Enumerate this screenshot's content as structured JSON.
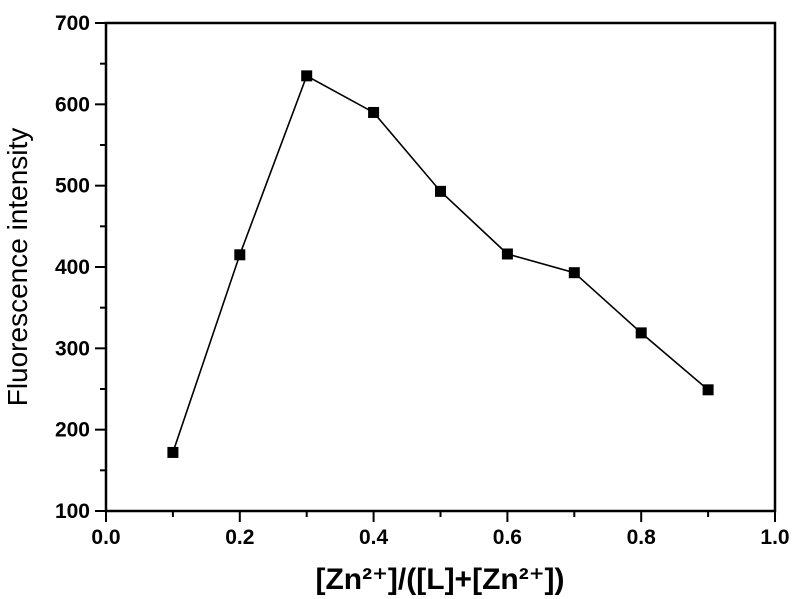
{
  "chart_data": {
    "type": "line",
    "title": "",
    "xlabel": "[Zn²⁺]/([L]+[Zn²⁺])",
    "ylabel": "Fluorescence intensity",
    "x": [
      0.1,
      0.2,
      0.3,
      0.4,
      0.5,
      0.6,
      0.7,
      0.8,
      0.9
    ],
    "y": [
      172,
      415,
      635,
      590,
      493,
      416,
      393,
      319,
      249
    ],
    "xlim": [
      0.0,
      1.0
    ],
    "ylim": [
      100,
      700
    ],
    "x_ticks": [
      0.0,
      0.2,
      0.4,
      0.6,
      0.8,
      1.0
    ],
    "x_tick_labels": [
      "0.0",
      "0.2",
      "0.4",
      "0.6",
      "0.8",
      "1.0"
    ],
    "x_minor_ticks": [
      0.1,
      0.3,
      0.5,
      0.7,
      0.9
    ],
    "y_ticks": [
      100,
      200,
      300,
      400,
      500,
      600,
      700
    ],
    "y_tick_labels": [
      "100",
      "200",
      "300",
      "400",
      "500",
      "600",
      "700"
    ],
    "y_minor_ticks": [
      150,
      250,
      350,
      450,
      550,
      650
    ],
    "marker": "square",
    "line_color": "#000000",
    "marker_color": "#000000",
    "axis_color": "#000000",
    "background": "#ffffff",
    "grid": false,
    "legend": false
  }
}
